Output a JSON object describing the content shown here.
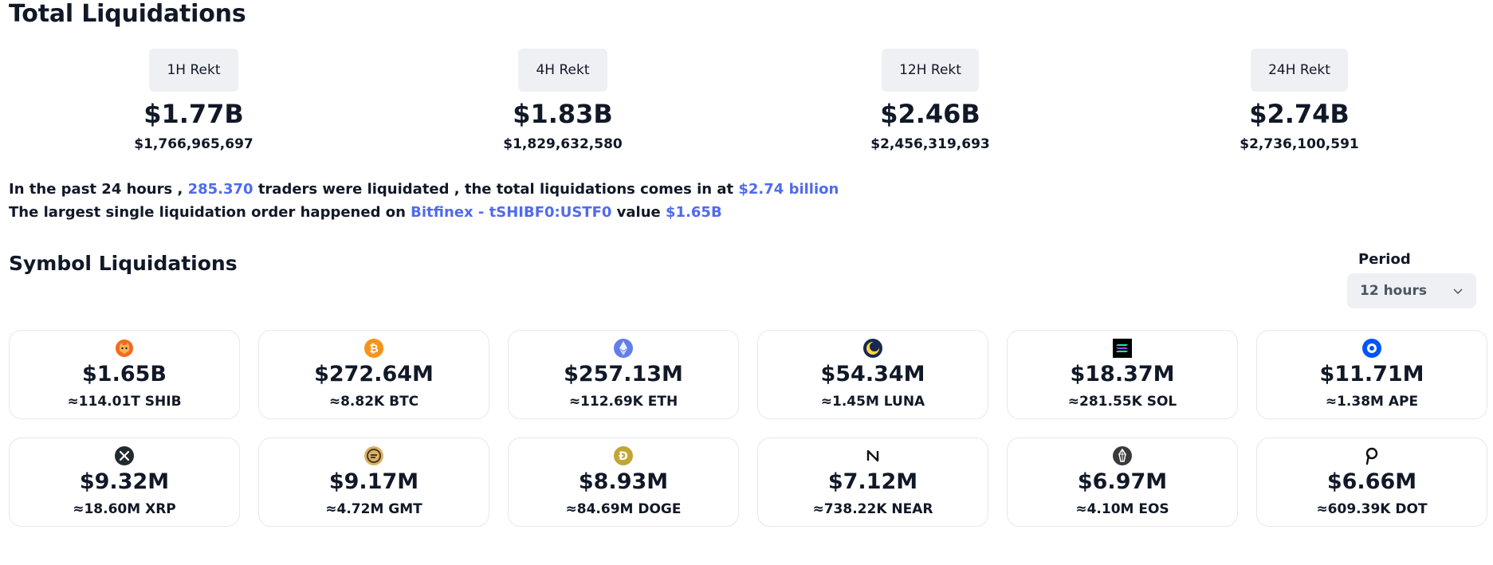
{
  "title": "Total Liquidations",
  "rekt": [
    {
      "label": "1H Rekt",
      "short": "$1.77B",
      "exact": "$1,766,965,697"
    },
    {
      "label": "4H Rekt",
      "short": "$1.83B",
      "exact": "$1,829,632,580"
    },
    {
      "label": "12H Rekt",
      "short": "$2.46B",
      "exact": "$2,456,319,693"
    },
    {
      "label": "24H Rekt",
      "short": "$2.74B",
      "exact": "$2,736,100,591"
    }
  ],
  "summary": {
    "line1_a": "In the past 24 hours , ",
    "traders": "285.370",
    "line1_b": " traders were liquidated , the total liquidations comes in at ",
    "total": "$2.74 billion",
    "line2_a": "The largest single liquidation order happened on ",
    "exchange_pair": "Bitfinex - tSHIBF0:USTF0",
    "line2_b": " value ",
    "largest_value": "$1.65B"
  },
  "symbol_title": "Symbol Liquidations",
  "period": {
    "label": "Period",
    "value": "12 hours"
  },
  "symbols": [
    {
      "symbol": "SHIB",
      "icon": "shib-icon",
      "amount": "$1.65B",
      "quantity": "≈114.01T SHIB"
    },
    {
      "symbol": "BTC",
      "icon": "btc-icon",
      "amount": "$272.64M",
      "quantity": "≈8.82K BTC"
    },
    {
      "symbol": "ETH",
      "icon": "eth-icon",
      "amount": "$257.13M",
      "quantity": "≈112.69K ETH"
    },
    {
      "symbol": "LUNA",
      "icon": "luna-icon",
      "amount": "$54.34M",
      "quantity": "≈1.45M LUNA"
    },
    {
      "symbol": "SOL",
      "icon": "sol-icon",
      "amount": "$18.37M",
      "quantity": "≈281.55K SOL"
    },
    {
      "symbol": "APE",
      "icon": "ape-icon",
      "amount": "$11.71M",
      "quantity": "≈1.38M APE"
    },
    {
      "symbol": "XRP",
      "icon": "xrp-icon",
      "amount": "$9.32M",
      "quantity": "≈18.60M XRP"
    },
    {
      "symbol": "GMT",
      "icon": "gmt-icon",
      "amount": "$9.17M",
      "quantity": "≈4.72M GMT"
    },
    {
      "symbol": "DOGE",
      "icon": "doge-icon",
      "amount": "$8.93M",
      "quantity": "≈84.69M DOGE"
    },
    {
      "symbol": "NEAR",
      "icon": "near-icon",
      "amount": "$7.12M",
      "quantity": "≈738.22K NEAR"
    },
    {
      "symbol": "EOS",
      "icon": "eos-icon",
      "amount": "$6.97M",
      "quantity": "≈4.10M EOS"
    },
    {
      "symbol": "DOT",
      "icon": "dot-icon",
      "amount": "$6.66M",
      "quantity": "≈609.39K DOT"
    }
  ],
  "colors": {
    "accent": "#4f6bed",
    "pill_bg": "#eef0f3",
    "card_border": "#e6e8eb",
    "text": "#111827"
  }
}
